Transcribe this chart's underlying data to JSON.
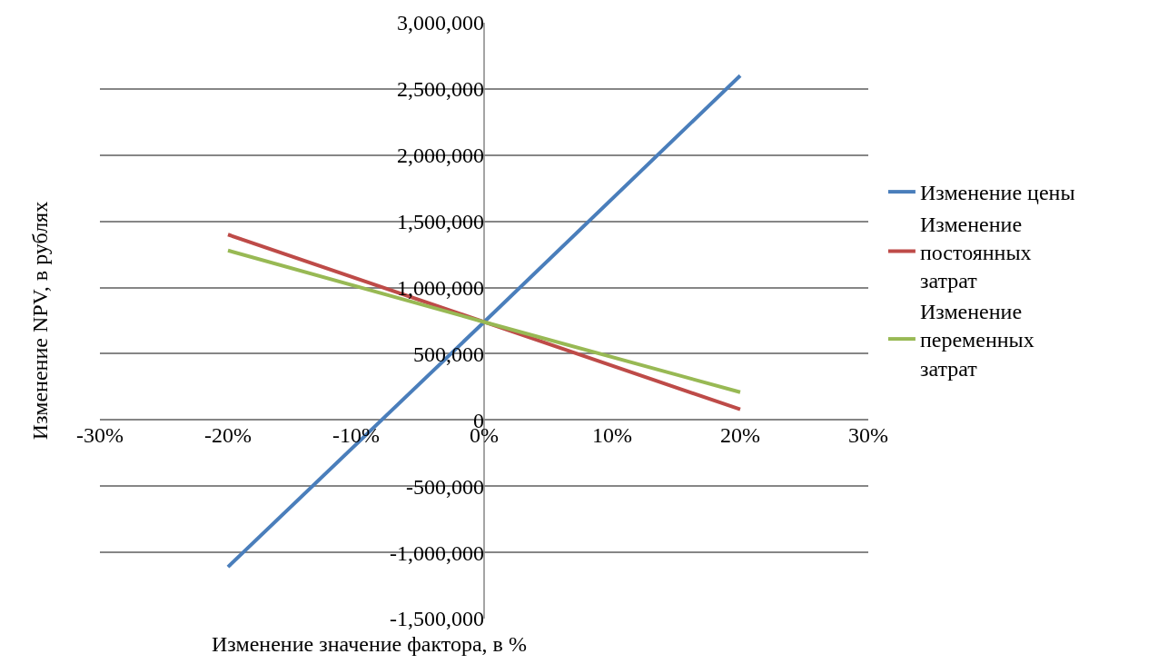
{
  "chart_data": {
    "type": "line",
    "xlabel": "Изменение значение фактора, в %",
    "ylabel": "Изменение NPV, в рублях",
    "x": [
      -20,
      0,
      20
    ],
    "series": [
      {
        "name": "Изменение цены",
        "color": "#4a7ebb",
        "values": [
          -1110000,
          740000,
          2600000
        ]
      },
      {
        "name": "Изменение постоянных затрат",
        "color": "#be4b48",
        "values": [
          1400000,
          740000,
          80000
        ]
      },
      {
        "name": "Изменение переменных затрат",
        "color": "#98b954",
        "values": [
          1280000,
          740000,
          210000
        ]
      }
    ],
    "xlim": [
      -30,
      30
    ],
    "xticks": [
      {
        "value": -30,
        "label": "-30%"
      },
      {
        "value": -20,
        "label": "-20%"
      },
      {
        "value": -10,
        "label": "-10%"
      },
      {
        "value": 0,
        "label": "0%"
      },
      {
        "value": 10,
        "label": "10%"
      },
      {
        "value": 20,
        "label": "20%"
      },
      {
        "value": 30,
        "label": "30%"
      }
    ],
    "ylim": [
      -1500000,
      3000000
    ],
    "yticks": [
      {
        "value": -1500000,
        "label": "-1,500,000"
      },
      {
        "value": -1000000,
        "label": "-1,000,000"
      },
      {
        "value": -500000,
        "label": "-500,000"
      },
      {
        "value": 0,
        "label": "0"
      },
      {
        "value": 500000,
        "label": "500,000"
      },
      {
        "value": 1000000,
        "label": "1,000,000"
      },
      {
        "value": 1500000,
        "label": "1,500,000"
      },
      {
        "value": 2000000,
        "label": "2,000,000"
      },
      {
        "value": 2500000,
        "label": "2,500,000"
      },
      {
        "value": 3000000,
        "label": "3,000,000"
      }
    ],
    "grid": "y",
    "legend": "right",
    "marker": "none",
    "line_style": "solid"
  }
}
